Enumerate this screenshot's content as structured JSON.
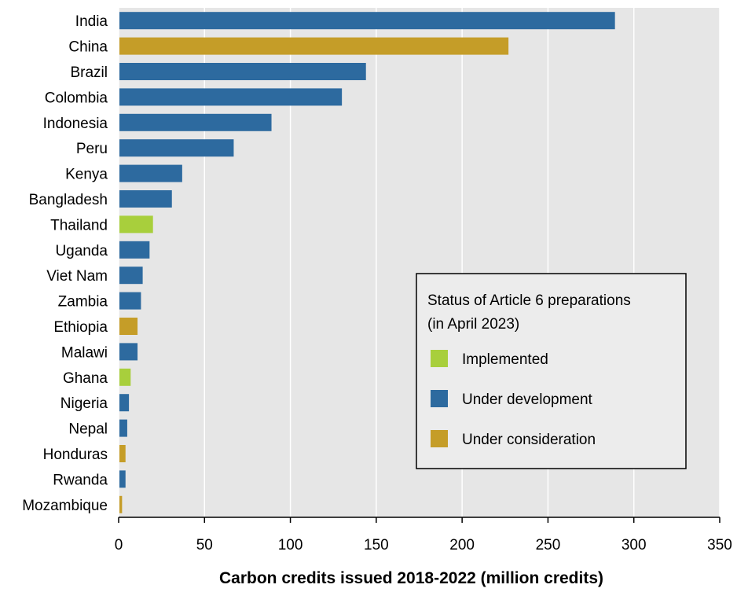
{
  "chart_data": {
    "type": "bar",
    "orientation": "horizontal",
    "categories": [
      "India",
      "China",
      "Brazil",
      "Colombia",
      "Indonesia",
      "Peru",
      "Kenya",
      "Bangladesh",
      "Thailand",
      "Uganda",
      "Viet Nam",
      "Zambia",
      "Ethiopia",
      "Malawi",
      "Ghana",
      "Nigeria",
      "Nepal",
      "Honduras",
      "Rwanda",
      "Mozambique"
    ],
    "values": [
      289,
      227,
      144,
      130,
      89,
      67,
      37,
      31,
      20,
      18,
      14,
      13,
      11,
      11,
      7,
      6,
      5,
      4,
      4,
      2
    ],
    "status": [
      "Under development",
      "Under consideration",
      "Under development",
      "Under development",
      "Under development",
      "Under development",
      "Under development",
      "Under development",
      "Implemented",
      "Under development",
      "Under development",
      "Under development",
      "Under consideration",
      "Under development",
      "Implemented",
      "Under development",
      "Under development",
      "Under consideration",
      "Under development",
      "Under consideration"
    ],
    "xlabel": "Carbon credits issued 2018-2022 (million credits)",
    "ylabel": "",
    "xlim": [
      0,
      350
    ],
    "xticks": [
      0,
      50,
      100,
      150,
      200,
      250,
      300,
      350
    ],
    "grid": true,
    "legend": {
      "title_line1": "Status of Article 6 preparations",
      "title_line2": "(in April 2023)",
      "placement": "lower-right",
      "entries": [
        {
          "name": "Implemented",
          "color": "#a8cf3c"
        },
        {
          "name": "Under development",
          "color": "#2d6a9f"
        },
        {
          "name": "Under consideration",
          "color": "#c59d28"
        }
      ]
    },
    "colors": {
      "Implemented": "#a8cf3c",
      "Under development": "#2d6a9f",
      "Under consideration": "#c59d28",
      "plot_background": "#e6e6e6",
      "gridline": "#ffffff"
    }
  }
}
